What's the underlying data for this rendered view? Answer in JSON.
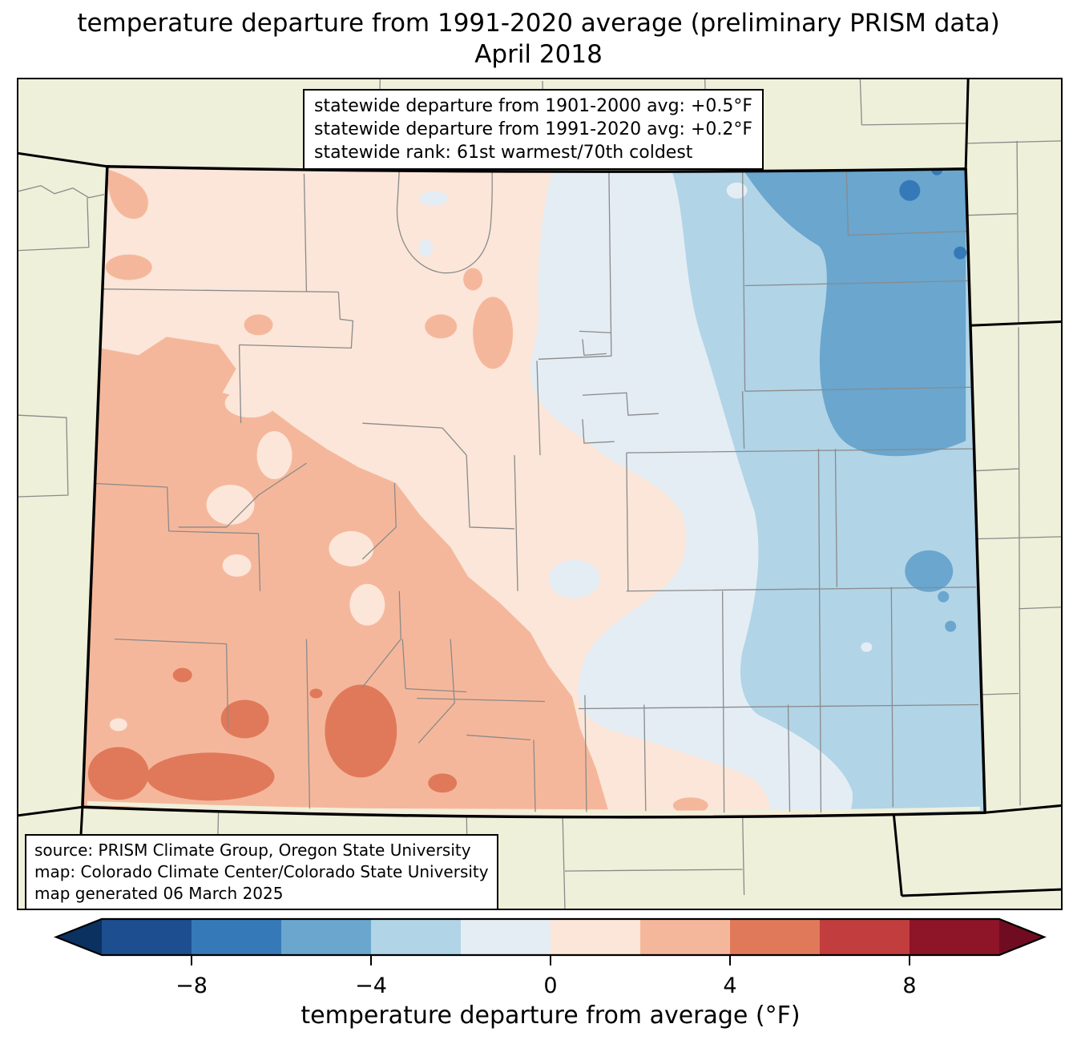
{
  "title": {
    "line1": "temperature departure from 1991-2020 average (preliminary PRISM data)",
    "line2": "April 2018"
  },
  "stats_box": {
    "lines": [
      "statewide departure from 1901-2000 avg: +0.5°F",
      "statewide departure from 1991-2020 avg: +0.2°F",
      "statewide rank: 61st warmest/70th coldest"
    ]
  },
  "source_box": {
    "lines": [
      "source: PRISM Climate Group, Oregon State University",
      "map: Colorado Climate Center/Colorado State University",
      "map generated 06 March 2025"
    ]
  },
  "map": {
    "region": "Colorado",
    "type": "filled-contour temperature anomaly map with county boundaries",
    "background_color": "#eff0da",
    "county_line_color": "#8a8a8a",
    "state_border_color": "#000000"
  },
  "colorbar": {
    "label": "temperature departure from average (°F)",
    "range_f": [
      -10,
      10
    ],
    "bin_size_f": 2,
    "tick_values": [
      -8,
      -4,
      0,
      4,
      8
    ],
    "tick_labels": [
      "−8",
      "−4",
      "0",
      "4",
      "8"
    ],
    "colors": [
      "#1d4e8f",
      "#3679b8",
      "#6aa6ce",
      "#b1d4e7",
      "#e4edf4",
      "#fbe6d9",
      "#f5b79b",
      "#e0795a",
      "#c23d3d",
      "#8e1427"
    ],
    "under_arrow_color": "#0b3161",
    "over_arrow_color": "#700c22"
  }
}
